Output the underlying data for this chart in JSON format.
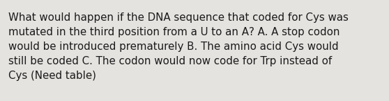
{
  "text": "What would happen if the DNA sequence that coded for Cys was\nmutated in the third position from a U to an A? A. A stop codon\nwould be introduced prematurely B. The amino acid Cys would\nstill be coded C. The codon would now code for Trp instead of\nCys (Need table)",
  "background_color": "#e5e3e0",
  "text_color": "#1a1a1a",
  "font_size": 10.8,
  "fig_width": 5.58,
  "fig_height": 1.46,
  "dpi": 100
}
